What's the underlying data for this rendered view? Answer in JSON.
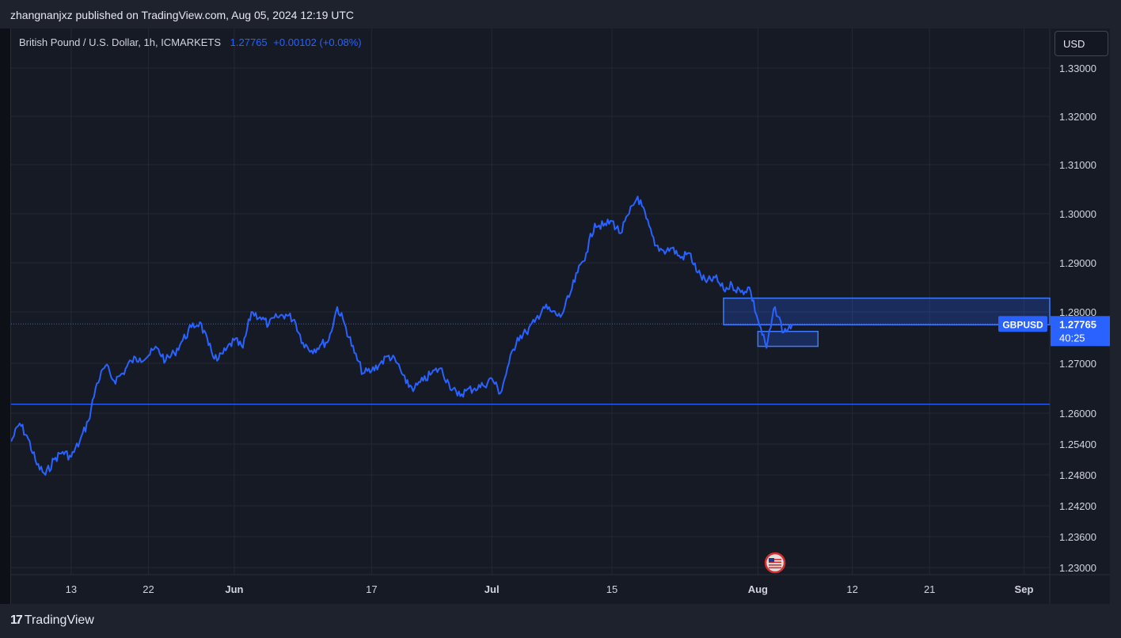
{
  "header": {
    "published_text": "zhangnanjxz published on TradingView.com, Aug 05, 2024 12:19 UTC"
  },
  "legend": {
    "symbol_text": "British Pound / U.S. Dollar, 1h, ICMARKETS",
    "price": "1.27765",
    "change": "+0.00102 (+0.08%)"
  },
  "toolbar": {
    "currency_label": "USD"
  },
  "price_badge": {
    "symbol": "GBPUSD",
    "price": "1.27765",
    "countdown": "40:25"
  },
  "footer": {
    "logo_mark": "17",
    "logo_text": "TradingView"
  },
  "colors": {
    "line": "#2962ff",
    "background": "#161a25",
    "grid": "#242833",
    "text": "#d1d4dc",
    "box_fill": "rgba(41,98,255,0.25)",
    "box_stroke": "#3d7bff"
  },
  "chart_data": {
    "type": "line",
    "yticks": [
      "1.33000",
      "1.32000",
      "1.31000",
      "1.30000",
      "1.29000",
      "1.28000",
      "1.27000",
      "1.26000",
      "1.25400",
      "1.24800",
      "1.24200",
      "1.23600",
      "1.23000"
    ],
    "xticks": [
      "13",
      "22",
      "Jun",
      "17",
      "Jul",
      "15",
      "Aug",
      "12",
      "21",
      "Sep"
    ],
    "series": [
      {
        "values": [
          {
            "x": "2024-05-06",
            "y": 1.2545
          },
          {
            "x": "2024-05-07",
            "y": 1.258
          },
          {
            "x": "2024-05-08",
            "y": 1.255
          },
          {
            "x": "2024-05-09",
            "y": 1.25
          },
          {
            "x": "2024-05-10",
            "y": 1.248
          },
          {
            "x": "2024-05-11",
            "y": 1.251
          },
          {
            "x": "2024-05-12",
            "y": 1.2525
          },
          {
            "x": "2024-05-13",
            "y": 1.2515
          },
          {
            "x": "2024-05-14",
            "y": 1.2545
          },
          {
            "x": "2024-05-15",
            "y": 1.2585
          },
          {
            "x": "2024-05-16",
            "y": 1.266
          },
          {
            "x": "2024-05-17",
            "y": 1.2695
          },
          {
            "x": "2024-05-18",
            "y": 1.2665
          },
          {
            "x": "2024-05-19",
            "y": 1.268
          },
          {
            "x": "2024-05-20",
            "y": 1.2705
          },
          {
            "x": "2024-05-21",
            "y": 1.271
          },
          {
            "x": "2024-05-22",
            "y": 1.2715
          },
          {
            "x": "2024-05-23",
            "y": 1.273
          },
          {
            "x": "2024-05-24",
            "y": 1.2705
          },
          {
            "x": "2024-05-25",
            "y": 1.272
          },
          {
            "x": "2024-05-26",
            "y": 1.2745
          },
          {
            "x": "2024-05-27",
            "y": 1.277
          },
          {
            "x": "2024-05-28",
            "y": 1.278
          },
          {
            "x": "2024-05-29",
            "y": 1.2735
          },
          {
            "x": "2024-05-30",
            "y": 1.2705
          },
          {
            "x": "2024-05-31",
            "y": 1.2725
          },
          {
            "x": "2024-06-01",
            "y": 1.2745
          },
          {
            "x": "2024-06-02",
            "y": 1.273
          },
          {
            "x": "2024-06-03",
            "y": 1.28
          },
          {
            "x": "2024-06-04",
            "y": 1.279
          },
          {
            "x": "2024-06-05",
            "y": 1.2775
          },
          {
            "x": "2024-06-06",
            "y": 1.279
          },
          {
            "x": "2024-06-07",
            "y": 1.2795
          },
          {
            "x": "2024-06-08",
            "y": 1.2785
          },
          {
            "x": "2024-06-09",
            "y": 1.274
          },
          {
            "x": "2024-06-10",
            "y": 1.2725
          },
          {
            "x": "2024-06-11",
            "y": 1.2735
          },
          {
            "x": "2024-06-12",
            "y": 1.2745
          },
          {
            "x": "2024-06-13",
            "y": 1.281
          },
          {
            "x": "2024-06-14",
            "y": 1.277
          },
          {
            "x": "2024-06-15",
            "y": 1.272
          },
          {
            "x": "2024-06-16",
            "y": 1.268
          },
          {
            "x": "2024-06-17",
            "y": 1.2685
          },
          {
            "x": "2024-06-18",
            "y": 1.27
          },
          {
            "x": "2024-06-19",
            "y": 1.2715
          },
          {
            "x": "2024-06-20",
            "y": 1.27
          },
          {
            "x": "2024-06-21",
            "y": 1.266
          },
          {
            "x": "2024-06-22",
            "y": 1.265
          },
          {
            "x": "2024-06-23",
            "y": 1.2665
          },
          {
            "x": "2024-06-24",
            "y": 1.268
          },
          {
            "x": "2024-06-25",
            "y": 1.269
          },
          {
            "x": "2024-06-26",
            "y": 1.266
          },
          {
            "x": "2024-06-27",
            "y": 1.2635
          },
          {
            "x": "2024-06-28",
            "y": 1.2645
          },
          {
            "x": "2024-06-29",
            "y": 1.265
          },
          {
            "x": "2024-06-30",
            "y": 1.2655
          },
          {
            "x": "2024-07-01",
            "y": 1.267
          },
          {
            "x": "2024-07-02",
            "y": 1.264
          },
          {
            "x": "2024-07-03",
            "y": 1.27
          },
          {
            "x": "2024-07-04",
            "y": 1.275
          },
          {
            "x": "2024-07-05",
            "y": 1.276
          },
          {
            "x": "2024-07-06",
            "y": 1.278
          },
          {
            "x": "2024-07-07",
            "y": 1.281
          },
          {
            "x": "2024-07-08",
            "y": 1.28
          },
          {
            "x": "2024-07-09",
            "y": 1.279
          },
          {
            "x": "2024-07-10",
            "y": 1.283
          },
          {
            "x": "2024-07-11",
            "y": 1.288
          },
          {
            "x": "2024-07-12",
            "y": 1.292
          },
          {
            "x": "2024-07-13",
            "y": 1.298
          },
          {
            "x": "2024-07-14",
            "y": 1.2975
          },
          {
            "x": "2024-07-15",
            "y": 1.2985
          },
          {
            "x": "2024-07-16",
            "y": 1.296
          },
          {
            "x": "2024-07-17",
            "y": 1.3
          },
          {
            "x": "2024-07-18",
            "y": 1.3035
          },
          {
            "x": "2024-07-19",
            "y": 1.299
          },
          {
            "x": "2024-07-20",
            "y": 1.2935
          },
          {
            "x": "2024-07-21",
            "y": 1.2925
          },
          {
            "x": "2024-07-22",
            "y": 1.293
          },
          {
            "x": "2024-07-23",
            "y": 1.291
          },
          {
            "x": "2024-07-24",
            "y": 1.292
          },
          {
            "x": "2024-07-25",
            "y": 1.288
          },
          {
            "x": "2024-07-26",
            "y": 1.286
          },
          {
            "x": "2024-07-27",
            "y": 1.287
          },
          {
            "x": "2024-07-28",
            "y": 1.2845
          },
          {
            "x": "2024-07-29",
            "y": 1.2855
          },
          {
            "x": "2024-07-30",
            "y": 1.284
          },
          {
            "x": "2024-07-31",
            "y": 1.285
          },
          {
            "x": "2024-08-01",
            "y": 1.2785
          },
          {
            "x": "2024-08-02",
            "y": 1.273
          },
          {
            "x": "2024-08-03",
            "y": 1.281
          },
          {
            "x": "2024-08-04",
            "y": 1.276
          },
          {
            "x": "2024-08-05",
            "y": 1.27765
          }
        ]
      }
    ],
    "horizontal_lines": [
      1.2618,
      1.27765
    ],
    "boxes": [
      {
        "x_start": "2024-07-28",
        "x_end": "2024-09-05",
        "y_top": 1.2828,
        "y_bottom": 1.2775
      },
      {
        "x_start": "2024-08-01",
        "x_end": "2024-08-08",
        "y_top": 1.2762,
        "y_bottom": 1.2733
      }
    ],
    "ylim": [
      1.2285,
      1.3345
    ],
    "xlim": [
      "2024-05-06",
      "2024-09-04"
    ],
    "grid": true
  }
}
